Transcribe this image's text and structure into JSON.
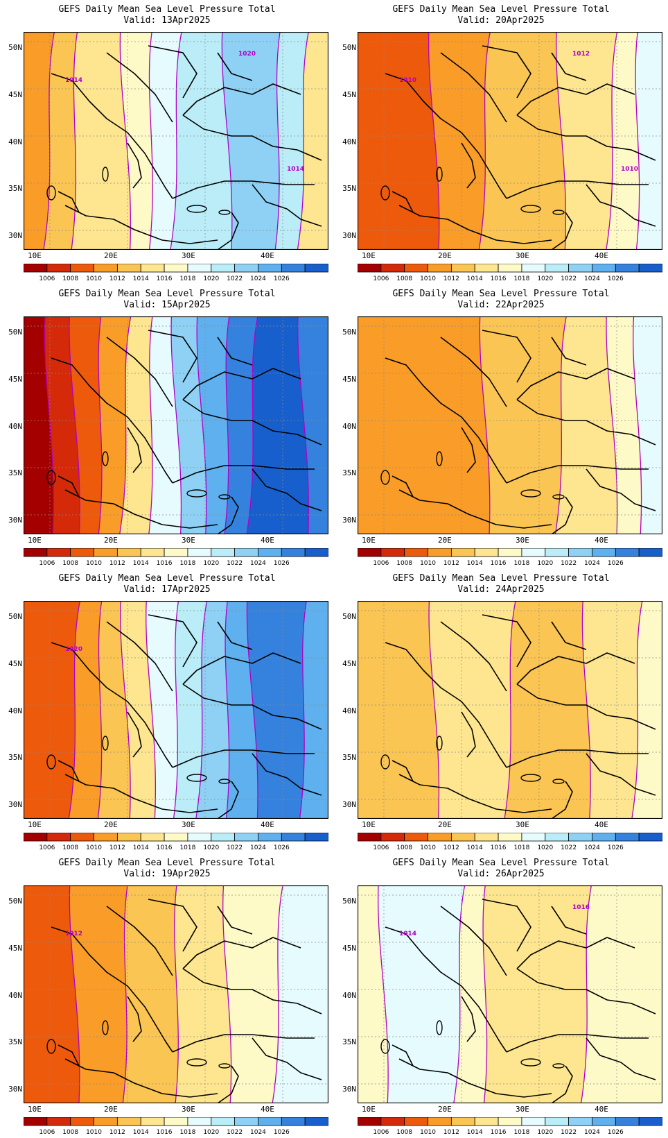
{
  "title": "GEFS Daily Mean Sea Level Pressure Total",
  "lat_labels": [
    "50N",
    "45N",
    "40N",
    "35N",
    "30N"
  ],
  "lon_labels": [
    "10E",
    "20E",
    "30E",
    "40E"
  ],
  "colorbar": {
    "labels": [
      "1006",
      "1008",
      "1010",
      "1012",
      "1014",
      "1016",
      "1018",
      "1020",
      "1022",
      "1024",
      "1026"
    ],
    "colors": [
      "#a50000",
      "#d42a0a",
      "#ee5a0c",
      "#f99c28",
      "#fbc553",
      "#fde68f",
      "#fefac8",
      "#e6fbfd",
      "#baedf7",
      "#8fd1f5",
      "#5fb0ee",
      "#3482de",
      "#175fcc"
    ]
  },
  "contour_color": "#b000c8",
  "panels": [
    {
      "valid": "Valid: 13Apr2025",
      "levels": [
        3,
        4,
        5,
        5,
        6,
        7,
        8,
        8,
        9,
        9,
        8,
        5
      ],
      "labels": [
        "1014",
        "1020",
        "1014"
      ]
    },
    {
      "valid": "Valid: 20Apr2025",
      "levels": [
        2,
        2,
        2,
        3,
        3,
        4,
        4,
        4,
        5,
        5,
        6,
        7
      ],
      "labels": [
        "1010",
        "1012",
        "1010"
      ]
    },
    {
      "valid": "Valid: 15Apr2025",
      "levels": [
        0,
        1,
        2,
        3,
        5,
        7,
        9,
        10,
        11,
        12,
        12,
        11
      ],
      "labels": []
    },
    {
      "valid": "Valid: 22Apr2025",
      "levels": [
        3,
        3,
        3,
        3,
        3,
        4,
        4,
        4,
        5,
        5,
        6,
        7
      ],
      "labels": []
    },
    {
      "valid": "Valid: 17Apr2025",
      "levels": [
        2,
        2,
        3,
        4,
        5,
        7,
        8,
        9,
        10,
        11,
        11,
        10
      ],
      "labels": [
        "1020"
      ]
    },
    {
      "valid": "Valid: 24Apr2025",
      "levels": [
        4,
        4,
        4,
        5,
        5,
        5,
        4,
        4,
        4,
        5,
        5,
        6
      ],
      "labels": []
    },
    {
      "valid": "Valid: 19Apr2025",
      "levels": [
        2,
        2,
        3,
        3,
        4,
        4,
        5,
        5,
        6,
        6,
        7,
        7
      ],
      "labels": [
        "1012"
      ]
    },
    {
      "valid": "Valid: 26Apr2025",
      "levels": [
        6,
        7,
        7,
        7,
        6,
        5,
        5,
        5,
        5,
        6,
        6,
        6
      ],
      "labels": [
        "1014",
        "1016"
      ]
    }
  ]
}
